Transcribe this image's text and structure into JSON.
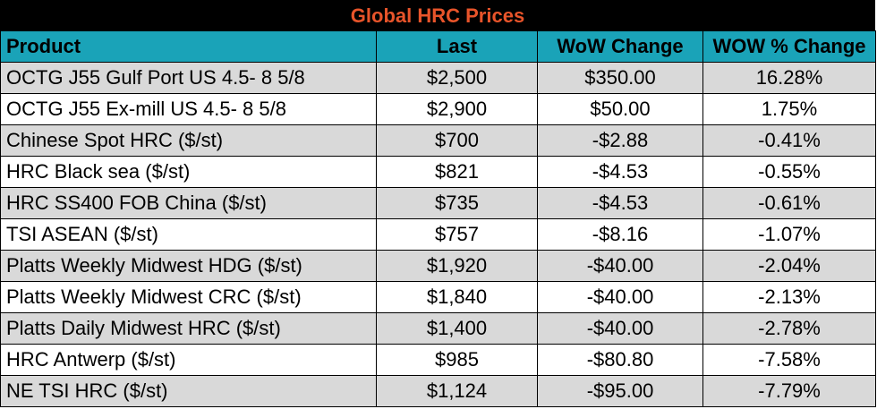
{
  "title": "Global HRC Prices",
  "headers": {
    "product": "Product",
    "last": "Last",
    "wow_change": "WoW Change",
    "wow_pct": "WOW % Change"
  },
  "rows": [
    {
      "product": "OCTG J55 Gulf Port US 4.5- 8 5/8",
      "last": "$2,500",
      "wow_change": "$350.00",
      "wow_pct": "16.28%"
    },
    {
      "product": "OCTG J55 Ex-mill US 4.5- 8 5/8",
      "last": "$2,900",
      "wow_change": "$50.00",
      "wow_pct": "1.75%"
    },
    {
      "product": "Chinese Spot HRC ($/st)",
      "last": "$700",
      "wow_change": "-$2.88",
      "wow_pct": "-0.41%"
    },
    {
      "product": "HRC Black sea ($/st)",
      "last": "$821",
      "wow_change": "-$4.53",
      "wow_pct": "-0.55%"
    },
    {
      "product": "HRC SS400 FOB China ($/st)",
      "last": "$735",
      "wow_change": "-$4.53",
      "wow_pct": "-0.61%"
    },
    {
      "product": "TSI ASEAN ($/st)",
      "last": "$757",
      "wow_change": "-$8.16",
      "wow_pct": "-1.07%"
    },
    {
      "product": "Platts Weekly Midwest HDG ($/st)",
      "last": "$1,920",
      "wow_change": "-$40.00",
      "wow_pct": "-2.04%"
    },
    {
      "product": "Platts Weekly Midwest CRC ($/st)",
      "last": "$1,840",
      "wow_change": "-$40.00",
      "wow_pct": "-2.13%"
    },
    {
      "product": "Platts Daily Midwest HRC ($/st)",
      "last": "$1,400",
      "wow_change": "-$40.00",
      "wow_pct": "-2.78%"
    },
    {
      "product": "HRC Antwerp ($/st)",
      "last": "$985",
      "wow_change": "-$80.80",
      "wow_pct": "-7.58%"
    },
    {
      "product": "NE TSI HRC ($/st)",
      "last": "$1,124",
      "wow_change": "-$95.00",
      "wow_pct": "-7.79%"
    }
  ],
  "colors": {
    "title_bg": "#000000",
    "title_text": "#e8542a",
    "header_bg": "#1aa3b8",
    "row_shade": "#d9d9d9",
    "row_plain": "#ffffff"
  }
}
